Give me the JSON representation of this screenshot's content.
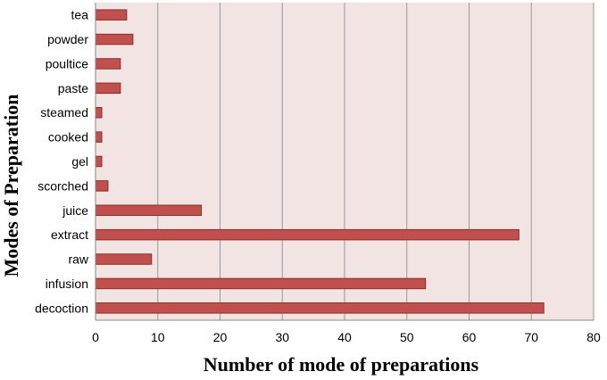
{
  "chart_data": {
    "type": "bar",
    "orientation": "horizontal",
    "xlabel": "Number of mode of preparations",
    "ylabel": "Modes of Preparation",
    "xlim": [
      0,
      80
    ],
    "xticks": [
      0,
      10,
      20,
      30,
      40,
      50,
      60,
      70,
      80
    ],
    "grid": "vertical",
    "legend": "none",
    "categories": [
      "tea",
      "powder",
      "poultice",
      "paste",
      "steamed",
      "cooked",
      "gel",
      "scorched",
      "juice",
      "extract",
      "raw",
      "infusion",
      "decoction"
    ],
    "values": [
      5,
      6,
      4,
      4,
      1,
      1,
      1,
      2,
      17,
      68,
      9,
      53,
      72
    ],
    "colors": {
      "plot_background": "#f3e4e4",
      "bar_fill": "#c0504d",
      "bar_stroke": "#8b2d2a",
      "grid": "#999999"
    }
  }
}
